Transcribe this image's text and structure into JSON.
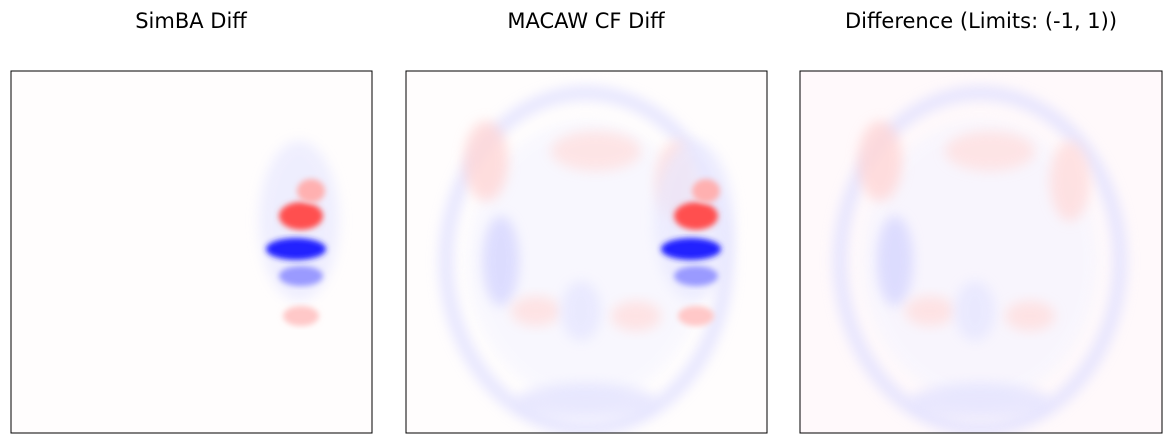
{
  "panels": [
    {
      "title": "SimBA Diff"
    },
    {
      "title": "MACAW CF Diff"
    },
    {
      "title": "Difference (Limits: (-1, 1))"
    }
  ]
}
